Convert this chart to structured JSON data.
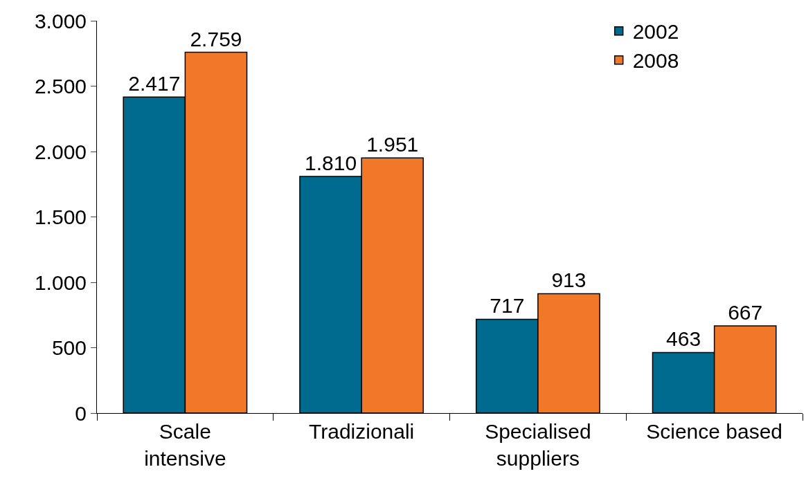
{
  "chart_data": {
    "type": "bar",
    "categories": [
      "Scale intensive",
      "Tradizionali",
      "Specialised suppliers",
      "Science based"
    ],
    "series": [
      {
        "name": "2002",
        "color": "#006a8e",
        "values": [
          2417,
          1810,
          717,
          463
        ],
        "value_labels": [
          "2.417",
          "1.810",
          "717",
          "463"
        ]
      },
      {
        "name": "2008",
        "color": "#f07828",
        "values": [
          2759,
          1951,
          913,
          667
        ],
        "value_labels": [
          "2.759",
          "1.951",
          "913",
          "667"
        ]
      }
    ],
    "ylim": [
      0,
      3000
    ],
    "yticks": [
      0,
      {
        "value": 500,
        "label": "500"
      },
      {
        "value": 1000,
        "label": "1.000"
      },
      {
        "value": 1500,
        "label": "1.500"
      },
      {
        "value": 2000,
        "label": "2.000"
      },
      {
        "value": 2500,
        "label": "2.500"
      },
      {
        "value": 3000,
        "label": "3.000"
      }
    ],
    "legend": "top right"
  }
}
